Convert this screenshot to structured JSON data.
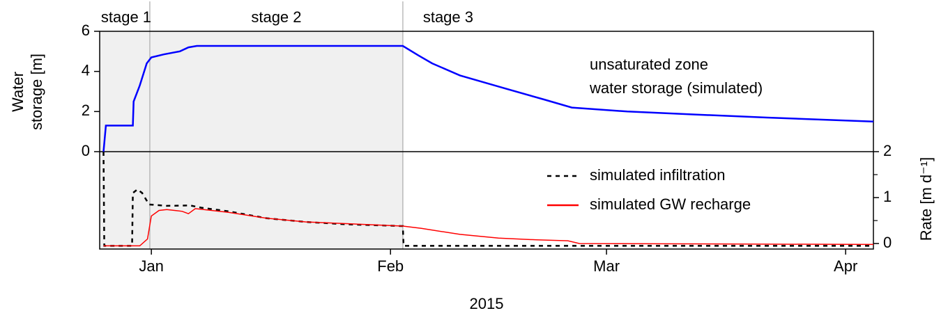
{
  "chart_data": [
    {
      "type": "line",
      "ylabel": [
        "Water",
        "storage [m]"
      ],
      "ylim": [
        0,
        6
      ],
      "yticks": [
        0,
        2,
        4,
        6
      ],
      "xlim": [
        -6.7,
        93.6
      ],
      "stage_boundaries": [
        -0.2,
        32.6
      ],
      "stage_labels": [
        "stage 1",
        "stage 2",
        "stage 3"
      ],
      "series": [
        {
          "name": [
            "unsaturated zone",
            "water storage (simulated)"
          ],
          "color": "#0000ff",
          "linestyle": "solid",
          "x": [
            -6.2,
            -5.9,
            -2.4,
            -2.3,
            -1.5,
            -0.6,
            0,
            1.6,
            3.7,
            4.8,
            5.9,
            32.6,
            34.6,
            36.4,
            40.0,
            45.4,
            50.9,
            54.5,
            61.7,
            70.7,
            79.8,
            93.6
          ],
          "values": [
            0,
            1.3,
            1.3,
            2.5,
            3.3,
            4.4,
            4.7,
            4.85,
            5.0,
            5.2,
            5.27,
            5.27,
            4.8,
            4.4,
            3.8,
            3.2,
            2.6,
            2.2,
            2.0,
            1.85,
            1.7,
            1.5
          ]
        }
      ]
    },
    {
      "type": "line",
      "y2label": "Rate [m d⁻¹]",
      "xlabel": "2015",
      "xlim": [
        -6.7,
        93.6
      ],
      "xticks": [
        {
          "value": 0,
          "label": "Jan"
        },
        {
          "value": 31,
          "label": "Feb"
        },
        {
          "value": 59,
          "label": "Mar"
        },
        {
          "value": 90,
          "label": "Apr"
        }
      ],
      "y2lim": [
        -0.12,
        2
      ],
      "y2ticks": [
        0,
        1,
        2
      ],
      "minor_y2ticks": [
        0.5,
        1.5
      ],
      "series": [
        {
          "name": "simulated infiltration",
          "color": "#000000",
          "linestyle": "dashed",
          "axis": "y2",
          "x": [
            -6.2,
            -6.1,
            -2.5,
            -2.4,
            -1.8,
            -1.2,
            -0.3,
            2,
            5,
            6.5,
            10,
            15,
            20,
            25,
            32.6,
            32.7,
            93.6
          ],
          "values": [
            2.0,
            -0.05,
            -0.05,
            1.1,
            1.18,
            1.1,
            0.85,
            0.82,
            0.83,
            0.78,
            0.7,
            0.55,
            0.47,
            0.42,
            0.38,
            -0.05,
            -0.05
          ]
        },
        {
          "name": "simulated GW recharge",
          "color": "#ff0000",
          "linestyle": "solid",
          "axis": "y2",
          "x": [
            -6.2,
            -1.5,
            -0.5,
            0,
            1.0,
            2,
            4,
            4.8,
            5.7,
            10,
            15,
            20,
            32.6,
            35,
            40,
            45,
            50,
            54,
            55.5,
            93.6
          ],
          "values": [
            -0.05,
            -0.05,
            0.1,
            0.6,
            0.72,
            0.74,
            0.7,
            0.65,
            0.76,
            0.68,
            0.55,
            0.47,
            0.38,
            0.33,
            0.2,
            0.12,
            0.08,
            0.06,
            0.0,
            -0.02
          ]
        }
      ]
    }
  ]
}
